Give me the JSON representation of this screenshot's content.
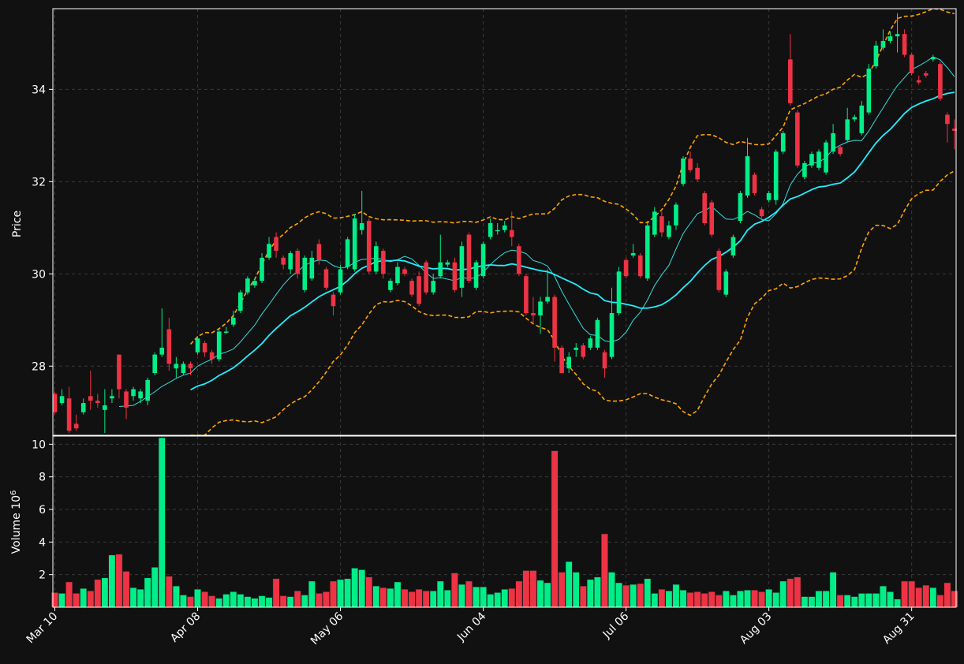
{
  "chart_data": {
    "type": "candlestick",
    "theme": {
      "background": "#111111",
      "up_color": "#00ee88",
      "down_color": "#ee3344",
      "grid_color": "#3a3a3a",
      "text_color": "#ffffff",
      "sma_fast_color": "#33dddd",
      "sma_slow_color": "#22eeff",
      "band_color": "#ffa500"
    },
    "grid": true,
    "price_panel": {
      "ylabel": "Price",
      "ylim": [
        26.5,
        35.75
      ],
      "yticks": [
        28,
        30,
        32,
        34
      ]
    },
    "volume_panel": {
      "ylabel": "Volume",
      "ylabel_multiplier": "10",
      "ylabel_exponent": "6",
      "ylim": [
        0,
        10.5
      ],
      "yticks": [
        2,
        4,
        6,
        8,
        10
      ]
    },
    "x_ticks": [
      {
        "label": "Mar 10",
        "index": 0
      },
      {
        "label": "Apr 08",
        "index": 20
      },
      {
        "label": "May 06",
        "index": 40
      },
      {
        "label": "Jun 04",
        "index": 60
      },
      {
        "label": "Jul 06",
        "index": 80
      },
      {
        "label": "Aug 03",
        "index": 100
      },
      {
        "label": "Aug 31",
        "index": 120
      }
    ],
    "series_info": {
      "sma_fast_period": 10,
      "sma_slow_period": 20,
      "band_period": 20,
      "band_std_multiplier": 2
    },
    "candles": [
      [
        27.4,
        27.0,
        27.45,
        26.95
      ],
      [
        27.2,
        27.35,
        27.5,
        27.15
      ],
      [
        27.3,
        26.6,
        27.55,
        26.55
      ],
      [
        26.75,
        26.65,
        26.95,
        26.6
      ],
      [
        27.0,
        27.2,
        27.3,
        26.95
      ],
      [
        27.35,
        27.25,
        27.9,
        27.05
      ],
      [
        27.25,
        27.2,
        27.4,
        27.1
      ],
      [
        27.05,
        27.15,
        27.5,
        26.55
      ],
      [
        27.3,
        27.35,
        27.5,
        27.2
      ],
      [
        28.25,
        27.5,
        28.25,
        27.3
      ],
      [
        27.45,
        27.1,
        27.5,
        26.85
      ],
      [
        27.35,
        27.5,
        27.55,
        27.25
      ],
      [
        27.3,
        27.45,
        27.5,
        27.2
      ],
      [
        27.25,
        27.7,
        27.75,
        27.15
      ],
      [
        27.85,
        28.25,
        28.3,
        27.8
      ],
      [
        28.25,
        28.4,
        29.25,
        28.2
      ],
      [
        28.8,
        28.05,
        29.05,
        27.9
      ],
      [
        27.95,
        28.05,
        28.2,
        27.75
      ],
      [
        27.85,
        28.05,
        28.1,
        27.8
      ],
      [
        28.05,
        27.95,
        28.1,
        27.8
      ],
      [
        28.3,
        28.6,
        28.65,
        28.25
      ],
      [
        28.5,
        28.3,
        28.55,
        28.2
      ],
      [
        28.3,
        28.15,
        28.35,
        28.05
      ],
      [
        28.15,
        28.75,
        28.8,
        28.1
      ],
      [
        28.75,
        28.75,
        28.85,
        28.7
      ],
      [
        28.9,
        29.05,
        29.2,
        28.85
      ],
      [
        29.2,
        29.6,
        29.65,
        29.15
      ],
      [
        29.6,
        29.9,
        29.95,
        29.55
      ],
      [
        29.75,
        29.85,
        29.9,
        29.7
      ],
      [
        29.85,
        30.35,
        30.45,
        29.8
      ],
      [
        30.35,
        30.65,
        30.8,
        30.3
      ],
      [
        30.8,
        30.5,
        30.9,
        30.35
      ],
      [
        30.35,
        30.2,
        30.4,
        30.1
      ],
      [
        30.1,
        30.45,
        30.5,
        30.0
      ],
      [
        30.5,
        30.0,
        30.55,
        29.9
      ],
      [
        29.65,
        30.35,
        30.4,
        29.6
      ],
      [
        29.9,
        30.35,
        30.5,
        29.85
      ],
      [
        30.65,
        30.3,
        30.75,
        30.2
      ],
      [
        30.1,
        29.7,
        30.15,
        29.65
      ],
      [
        29.55,
        29.3,
        29.6,
        29.1
      ],
      [
        29.6,
        30.1,
        30.2,
        29.55
      ],
      [
        30.15,
        30.75,
        30.8,
        30.1
      ],
      [
        30.1,
        31.2,
        31.3,
        30.05
      ],
      [
        30.95,
        31.1,
        31.8,
        30.85
      ],
      [
        31.15,
        30.05,
        31.2,
        30.0
      ],
      [
        30.05,
        30.6,
        30.7,
        30.0
      ],
      [
        30.5,
        30.0,
        30.55,
        29.9
      ],
      [
        29.65,
        29.85,
        29.9,
        29.6
      ],
      [
        29.8,
        30.15,
        30.25,
        29.75
      ],
      [
        30.1,
        30.0,
        30.15,
        29.95
      ],
      [
        29.85,
        29.55,
        29.9,
        29.5
      ],
      [
        29.95,
        29.35,
        30.05,
        29.3
      ],
      [
        30.25,
        29.6,
        30.3,
        29.55
      ],
      [
        29.6,
        29.85,
        30.0,
        29.55
      ],
      [
        29.95,
        30.25,
        30.85,
        29.9
      ],
      [
        30.2,
        30.25,
        30.3,
        30.15
      ],
      [
        30.25,
        29.65,
        30.35,
        29.6
      ],
      [
        29.7,
        30.6,
        30.7,
        29.5
      ],
      [
        30.85,
        29.85,
        30.9,
        29.8
      ],
      [
        29.7,
        30.25,
        30.3,
        29.65
      ],
      [
        29.95,
        30.65,
        30.7,
        29.9
      ],
      [
        30.8,
        31.1,
        31.2,
        30.75
      ],
      [
        30.95,
        30.95,
        31.1,
        30.85
      ],
      [
        30.95,
        31.05,
        31.15,
        30.9
      ],
      [
        30.95,
        30.8,
        31.35,
        30.6
      ],
      [
        30.6,
        30.0,
        30.65,
        29.95
      ],
      [
        29.95,
        29.15,
        30.0,
        29.1
      ],
      [
        29.15,
        29.1,
        29.5,
        28.9
      ],
      [
        29.1,
        29.4,
        29.5,
        28.7
      ],
      [
        29.4,
        29.5,
        30.1,
        29.35
      ],
      [
        29.5,
        28.4,
        29.55,
        28.1
      ],
      [
        28.4,
        27.85,
        28.45,
        27.85
      ],
      [
        27.95,
        28.2,
        28.3,
        27.85
      ],
      [
        28.35,
        28.4,
        28.5,
        28.2
      ],
      [
        28.45,
        28.2,
        28.5,
        28.15
      ],
      [
        28.4,
        28.6,
        28.65,
        28.35
      ],
      [
        28.4,
        29.0,
        29.05,
        28.35
      ],
      [
        28.3,
        27.95,
        28.35,
        27.75
      ],
      [
        28.2,
        29.15,
        29.7,
        28.15
      ],
      [
        29.15,
        30.05,
        30.15,
        29.1
      ],
      [
        30.3,
        29.95,
        30.35,
        29.9
      ],
      [
        30.4,
        30.45,
        30.65,
        30.35
      ],
      [
        30.4,
        29.95,
        30.45,
        29.9
      ],
      [
        29.9,
        31.05,
        31.15,
        29.85
      ],
      [
        30.85,
        31.35,
        31.45,
        30.8
      ],
      [
        31.25,
        30.9,
        31.35,
        30.8
      ],
      [
        30.8,
        31.05,
        31.15,
        30.75
      ],
      [
        31.05,
        31.5,
        31.55,
        30.95
      ],
      [
        31.95,
        32.5,
        32.55,
        31.9
      ],
      [
        32.5,
        32.25,
        32.65,
        32.2
      ],
      [
        32.3,
        32.05,
        32.4,
        32.0
      ],
      [
        31.75,
        31.1,
        31.8,
        31.05
      ],
      [
        31.55,
        30.85,
        31.6,
        30.8
      ],
      [
        30.5,
        29.65,
        30.55,
        29.6
      ],
      [
        29.55,
        30.05,
        30.1,
        29.5
      ],
      [
        30.4,
        30.8,
        30.85,
        30.35
      ],
      [
        31.15,
        31.75,
        31.8,
        31.1
      ],
      [
        31.7,
        32.55,
        32.95,
        31.65
      ],
      [
        32.15,
        31.75,
        32.2,
        31.7
      ],
      [
        31.4,
        31.25,
        31.45,
        31.2
      ],
      [
        31.6,
        31.75,
        31.8,
        31.55
      ],
      [
        31.6,
        32.65,
        32.7,
        31.5
      ],
      [
        32.65,
        33.05,
        33.1,
        32.6
      ],
      [
        34.65,
        33.7,
        35.2,
        33.65
      ],
      [
        33.5,
        32.35,
        33.55,
        32.3
      ],
      [
        32.1,
        32.4,
        32.45,
        32.05
      ],
      [
        32.35,
        32.6,
        32.65,
        32.3
      ],
      [
        32.3,
        32.65,
        32.7,
        32.25
      ],
      [
        32.2,
        32.85,
        32.9,
        32.15
      ],
      [
        32.65,
        33.05,
        33.25,
        32.6
      ],
      [
        32.75,
        32.6,
        32.8,
        32.55
      ],
      [
        32.9,
        33.35,
        33.6,
        32.85
      ],
      [
        33.35,
        33.4,
        33.45,
        33.3
      ],
      [
        33.05,
        33.65,
        33.75,
        33.0
      ],
      [
        33.5,
        34.45,
        34.55,
        33.45
      ],
      [
        34.5,
        34.95,
        35.05,
        34.45
      ],
      [
        34.9,
        35.05,
        35.3,
        34.85
      ],
      [
        35.05,
        35.15,
        35.25,
        35.0
      ],
      [
        35.15,
        35.2,
        35.65,
        34.8
      ],
      [
        35.2,
        34.75,
        35.3,
        34.7
      ],
      [
        34.75,
        34.35,
        34.8,
        34.3
      ],
      [
        34.2,
        34.15,
        34.3,
        34.1
      ],
      [
        34.35,
        34.3,
        34.4,
        34.25
      ],
      [
        34.65,
        34.7,
        34.75,
        34.6
      ],
      [
        34.55,
        33.8,
        34.6,
        33.75
      ],
      [
        33.45,
        33.25,
        33.5,
        32.85
      ],
      [
        33.15,
        33.1,
        33.35,
        32.7
      ]
    ],
    "volume": [
      0.9,
      0.85,
      1.55,
      0.85,
      1.15,
      1.0,
      1.7,
      1.8,
      3.2,
      3.25,
      2.2,
      1.2,
      1.1,
      1.8,
      2.45,
      10.4,
      1.9,
      1.3,
      0.75,
      0.65,
      1.1,
      0.95,
      0.7,
      0.55,
      0.8,
      0.95,
      0.8,
      0.65,
      0.55,
      0.7,
      0.6,
      1.75,
      0.7,
      0.65,
      1.0,
      0.75,
      1.6,
      0.85,
      0.95,
      1.6,
      1.7,
      1.75,
      2.4,
      2.3,
      1.85,
      1.3,
      1.2,
      1.15,
      1.55,
      1.1,
      0.95,
      1.1,
      1.0,
      1.0,
      1.6,
      1.05,
      2.1,
      1.4,
      1.6,
      1.25,
      1.25,
      0.8,
      0.9,
      1.1,
      1.15,
      1.6,
      2.25,
      2.25,
      1.65,
      1.5,
      9.6,
      2.15,
      2.8,
      2.15,
      1.3,
      1.7,
      1.85,
      4.5,
      2.15,
      1.5,
      1.35,
      1.4,
      1.45,
      1.75,
      0.85,
      1.1,
      1.0,
      1.4,
      1.05,
      0.9,
      0.95,
      0.85,
      0.95,
      0.75,
      1.0,
      0.75,
      1.0,
      1.05,
      1.05,
      0.95,
      1.1,
      0.9,
      1.6,
      1.75,
      1.85,
      0.65,
      0.65,
      1.0,
      1.0,
      2.15,
      0.75,
      0.75,
      0.65,
      0.85,
      0.85,
      0.85,
      1.3,
      0.95,
      0.5,
      1.6,
      1.6,
      1.2,
      1.35,
      1.2,
      0.75,
      1.5,
      1.0
    ]
  }
}
